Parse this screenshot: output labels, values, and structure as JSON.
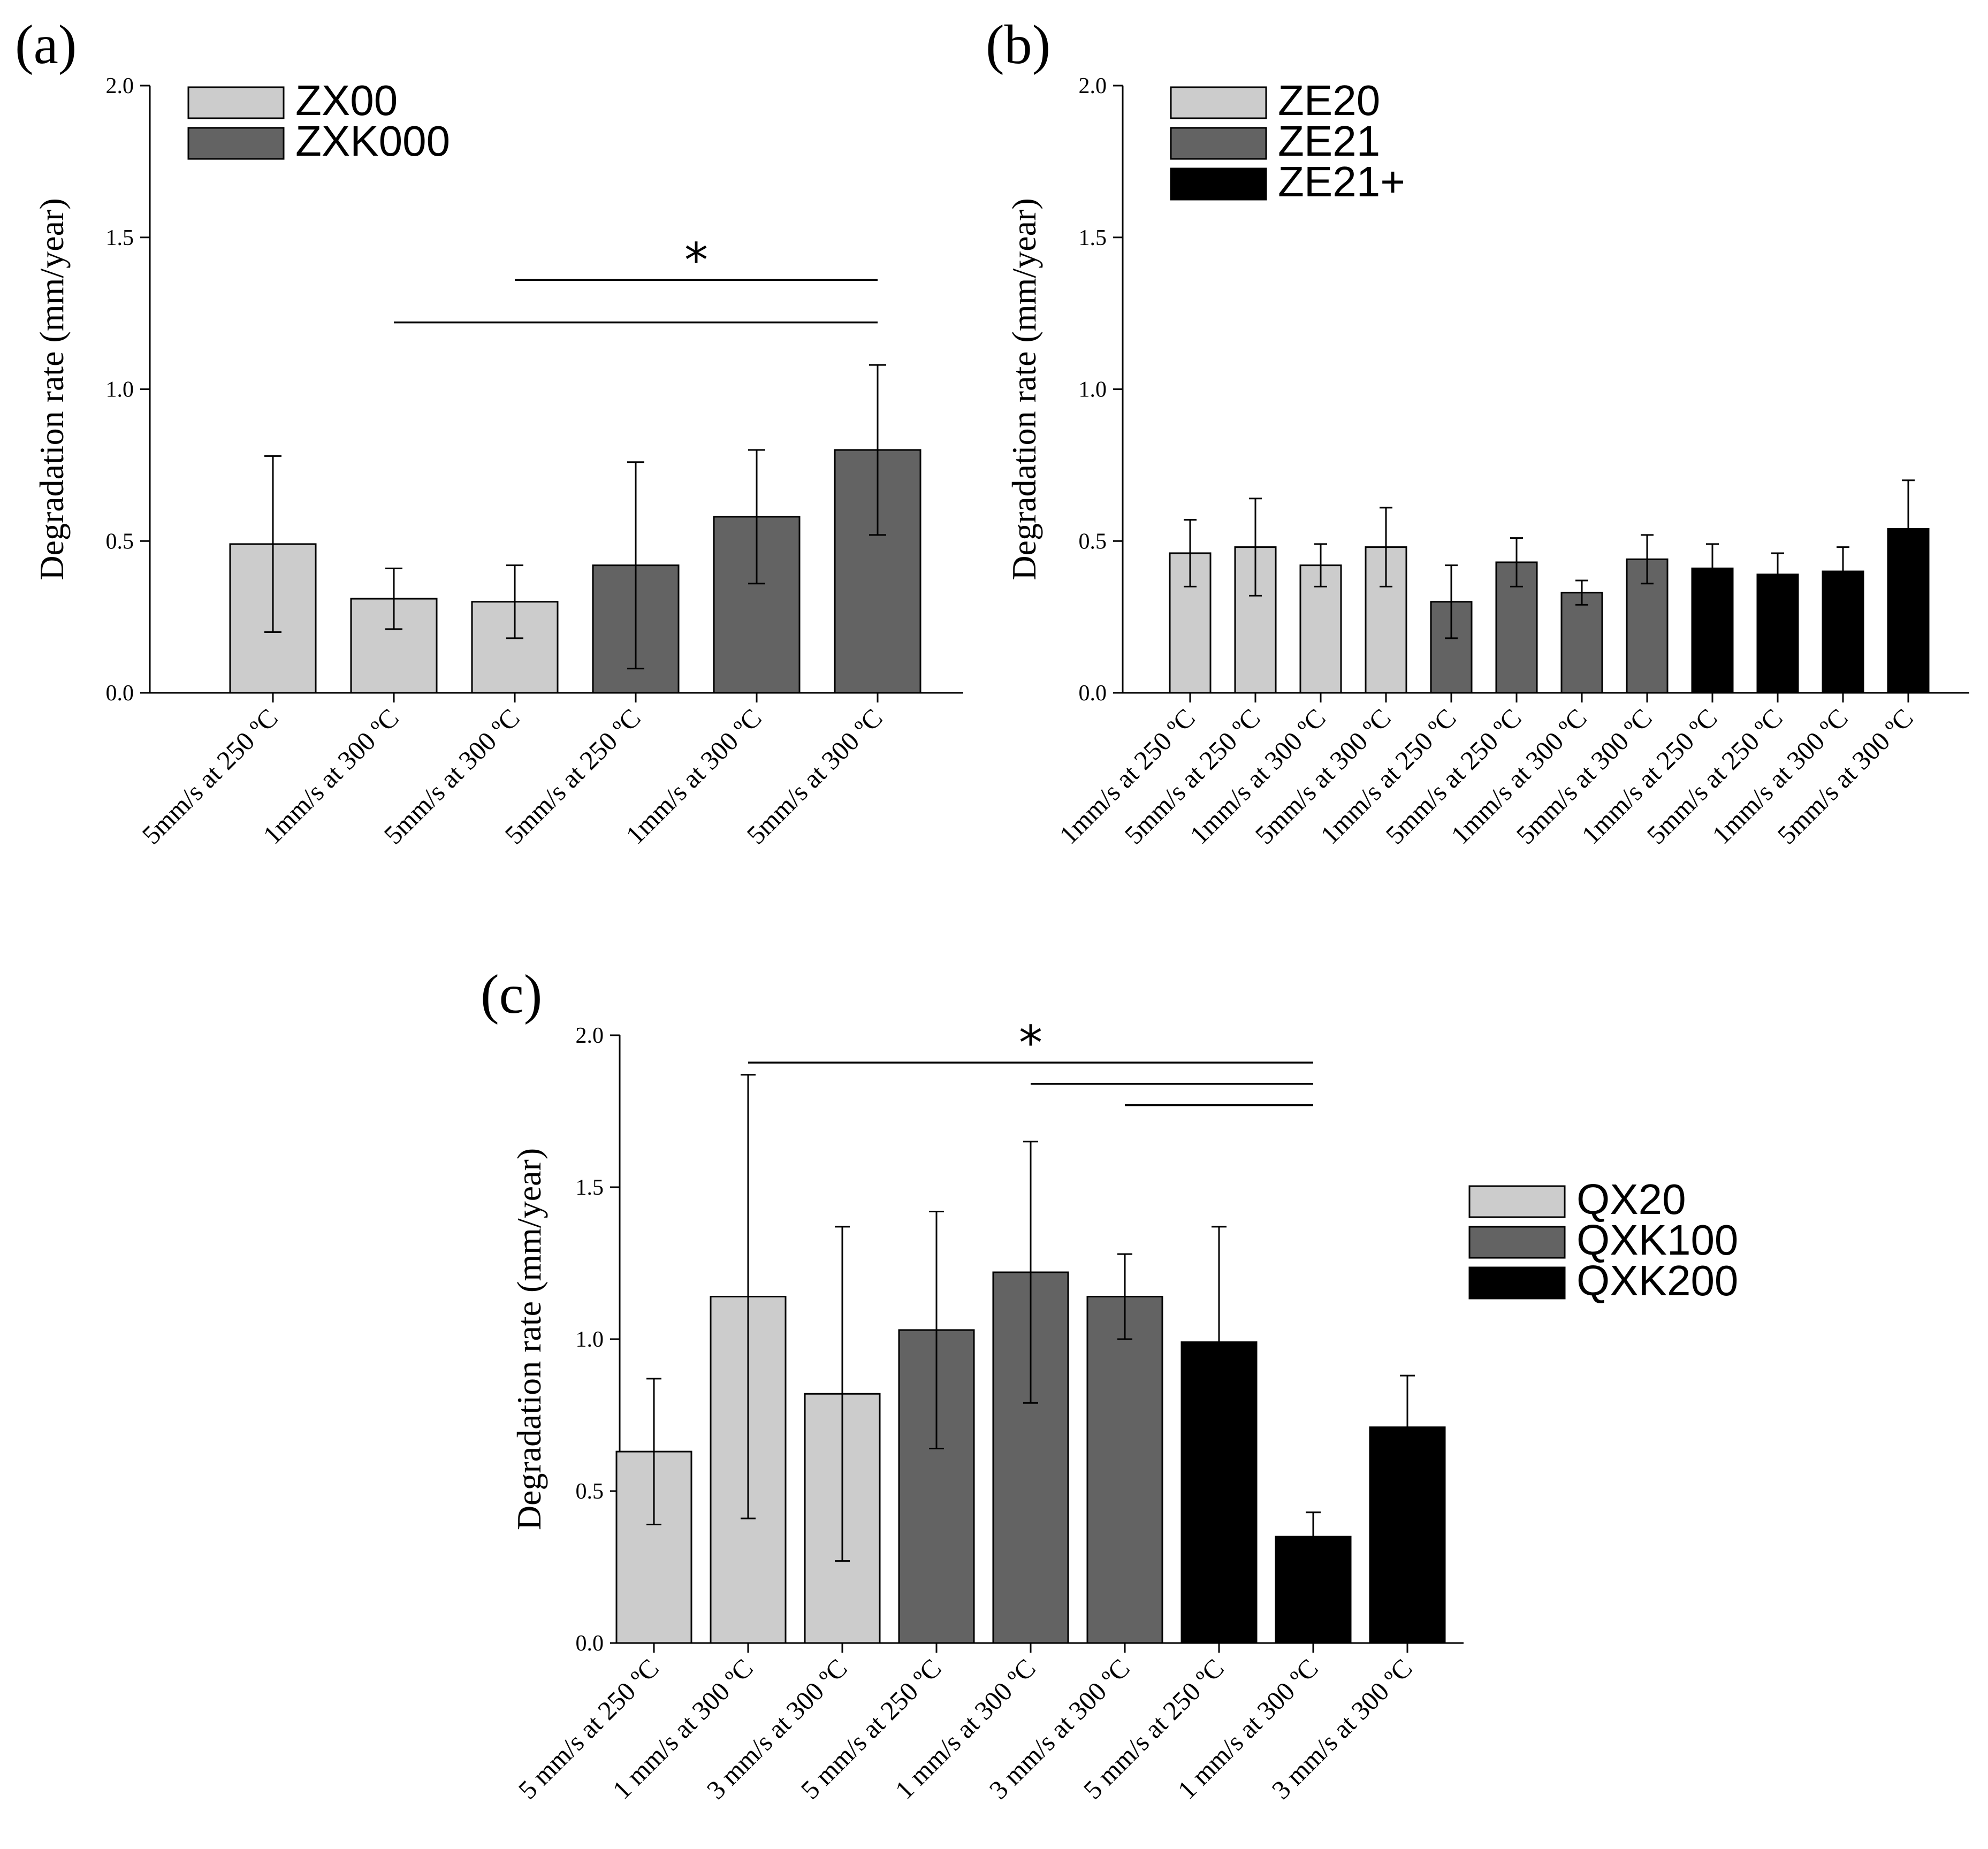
{
  "figure": {
    "panels": [
      "(a)",
      "(b)",
      "(c)"
    ]
  },
  "colors": {
    "light": "#cccccc",
    "dark": "#636363",
    "black": "#000000"
  },
  "chart_data": [
    {
      "panel": "(a)",
      "type": "bar",
      "ylabel": "Degradation rate (mm/year)",
      "ylim": [
        0,
        2.0
      ],
      "yticks": [
        "0.0",
        "0.5",
        "1.0",
        "1.5",
        "2.0"
      ],
      "legend_placement": "top-left",
      "legend": [
        {
          "label": "ZX00",
          "color": "light"
        },
        {
          "label": "ZXK000",
          "color": "dark"
        }
      ],
      "bars": [
        {
          "category": "5mm/s at 250 ºC",
          "value": 0.49,
          "error": 0.29,
          "color": "light"
        },
        {
          "category": "1mm/s at 300 ºC",
          "value": 0.31,
          "error": 0.1,
          "color": "light"
        },
        {
          "category": "5mm/s at 300 ºC",
          "value": 0.3,
          "error": 0.12,
          "color": "light"
        },
        {
          "category": "5mm/s at 250 ºC",
          "value": 0.42,
          "error": 0.34,
          "color": "dark"
        },
        {
          "category": "1mm/s at 300 ºC",
          "value": 0.58,
          "error": 0.22,
          "color": "dark"
        },
        {
          "category": "5mm/s at 300 ºC",
          "value": 0.8,
          "error": 0.28,
          "color": "dark"
        }
      ],
      "significance": {
        "star": "*",
        "brackets": [
          {
            "from": 2,
            "to": 5,
            "level": 1.36
          },
          {
            "from": 1,
            "to": 5,
            "level": 1.22
          }
        ]
      }
    },
    {
      "panel": "(b)",
      "type": "bar",
      "ylabel": "Degradation rate (mm/year)",
      "ylim": [
        0,
        2.0
      ],
      "yticks": [
        "0.0",
        "0.5",
        "1.0",
        "1.5",
        "2.0"
      ],
      "legend_placement": "top-left",
      "legend": [
        {
          "label": "ZE20",
          "color": "light"
        },
        {
          "label": "ZE21",
          "color": "dark"
        },
        {
          "label": "ZE21+",
          "color": "black"
        }
      ],
      "bars": [
        {
          "category": "1mm/s at 250 ºC",
          "value": 0.46,
          "error": 0.11,
          "color": "light"
        },
        {
          "category": "5mm/s at 250 ºC",
          "value": 0.48,
          "error": 0.16,
          "color": "light"
        },
        {
          "category": "1mm/s at 300 ºC",
          "value": 0.42,
          "error": 0.07,
          "color": "light"
        },
        {
          "category": "5mm/s at 300 ºC",
          "value": 0.48,
          "error": 0.13,
          "color": "light"
        },
        {
          "category": "1mm/s at 250 ºC",
          "value": 0.3,
          "error": 0.12,
          "color": "dark"
        },
        {
          "category": "5mm/s at 250 ºC",
          "value": 0.43,
          "error": 0.08,
          "color": "dark"
        },
        {
          "category": "1mm/s at 300 ºC",
          "value": 0.33,
          "error": 0.04,
          "color": "dark"
        },
        {
          "category": "5mm/s at 300 ºC",
          "value": 0.44,
          "error": 0.08,
          "color": "dark"
        },
        {
          "category": "1mm/s at 250 ºC",
          "value": 0.41,
          "error": 0.08,
          "color": "black"
        },
        {
          "category": "5mm/s at 250 ºC",
          "value": 0.39,
          "error": 0.07,
          "color": "black"
        },
        {
          "category": "1mm/s at 300 ºC",
          "value": 0.4,
          "error": 0.08,
          "color": "black"
        },
        {
          "category": "5mm/s at 300 ºC",
          "value": 0.54,
          "error": 0.16,
          "color": "black"
        }
      ],
      "significance": null
    },
    {
      "panel": "(c)",
      "type": "bar",
      "ylabel": "Degradation rate (mm/year)",
      "ylim": [
        0,
        2.0
      ],
      "yticks": [
        "0.0",
        "0.5",
        "1.0",
        "1.5",
        "2.0"
      ],
      "legend_placement": "right",
      "legend": [
        {
          "label": "QX20",
          "color": "light"
        },
        {
          "label": "QXK100",
          "color": "dark"
        },
        {
          "label": "QXK200",
          "color": "black"
        }
      ],
      "bars": [
        {
          "category": "5 mm/s at 250 ºC",
          "value": 0.63,
          "error": 0.24,
          "color": "light"
        },
        {
          "category": "1 mm/s at 300 ºC",
          "value": 1.14,
          "error": 0.73,
          "color": "light"
        },
        {
          "category": "3 mm/s at 300 ºC",
          "value": 0.82,
          "error": 0.55,
          "color": "light"
        },
        {
          "category": "5 mm/s at 250 ºC",
          "value": 1.03,
          "error": 0.39,
          "color": "dark"
        },
        {
          "category": "1 mm/s at 300 ºC",
          "value": 1.22,
          "error": 0.43,
          "color": "dark"
        },
        {
          "category": "3 mm/s at 300 ºC",
          "value": 1.14,
          "error": 0.14,
          "color": "dark"
        },
        {
          "category": "5 mm/s at 250 ºC",
          "value": 0.99,
          "error": 0.38,
          "color": "black"
        },
        {
          "category": "1 mm/s at 300 ºC",
          "value": 0.35,
          "error": 0.08,
          "color": "black"
        },
        {
          "category": "3 mm/s at 300 ºC",
          "value": 0.71,
          "error": 0.17,
          "color": "black"
        }
      ],
      "significance": {
        "star": "*",
        "brackets": [
          {
            "from": 1,
            "to": 7,
            "level": 1.91
          },
          {
            "from": 4,
            "to": 7,
            "level": 1.84
          },
          {
            "from": 5,
            "to": 7,
            "level": 1.77
          }
        ]
      }
    }
  ]
}
